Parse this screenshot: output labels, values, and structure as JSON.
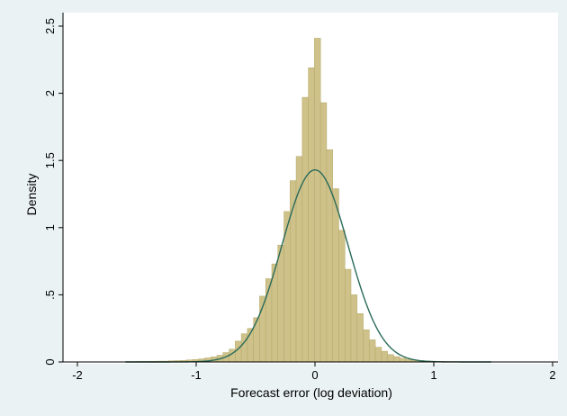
{
  "chart_data": {
    "type": "bar",
    "subtype": "histogram-with-normal-density-overlay",
    "title": "",
    "xlabel": "Forecast error (log deviation)",
    "ylabel": "Density",
    "xlim": [
      -2,
      2
    ],
    "ylim": [
      0,
      2.5
    ],
    "x_ticks": [
      -2,
      -1,
      0,
      1,
      2
    ],
    "x_tick_labels": [
      "-2",
      "-1",
      "0",
      "1",
      "2"
    ],
    "y_ticks": [
      0,
      0.5,
      1,
      1.5,
      2,
      2.5
    ],
    "y_tick_labels": [
      "0",
      ".5",
      "1",
      "1.5",
      "2",
      "2.5"
    ],
    "grid": false,
    "legend": "none",
    "colors": {
      "bars": "#cec28a",
      "bar_edge": "#b3a766",
      "curve": "#2a6a5a",
      "background": "#eaf2f3",
      "plot_area": "#ffffff"
    },
    "histogram": {
      "bin_width": 0.0513,
      "bin_start": -1.595,
      "densities": [
        0.003,
        0.003,
        0.004,
        0.004,
        0.005,
        0.006,
        0.006,
        0.008,
        0.01,
        0.012,
        0.015,
        0.018,
        0.023,
        0.03,
        0.038,
        0.05,
        0.07,
        0.095,
        0.155,
        0.21,
        0.25,
        0.33,
        0.49,
        0.62,
        0.73,
        0.87,
        1.12,
        1.35,
        1.53,
        1.97,
        2.19,
        2.41,
        1.93,
        1.58,
        1.29,
        0.98,
        0.69,
        0.5,
        0.36,
        0.24,
        0.165,
        0.11,
        0.08,
        0.055,
        0.04,
        0.028,
        0.02,
        0.015,
        0.011,
        0.008,
        0.006,
        0.005,
        0.004,
        0.003,
        0.003,
        0.002,
        0.002,
        0.002,
        0.001,
        0.001
      ]
    },
    "normal_curve": {
      "mean": 0.0,
      "sd": 0.279
    }
  }
}
